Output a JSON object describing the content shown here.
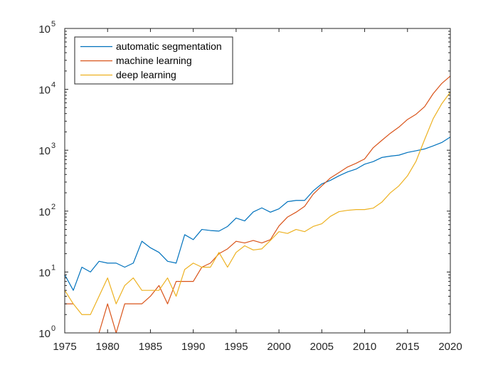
{
  "chart_data": {
    "type": "line",
    "title": "",
    "xlabel": "",
    "ylabel": "",
    "xlim": [
      1975,
      2020
    ],
    "ylim": [
      1,
      100000
    ],
    "yscale": "log",
    "grid": false,
    "legend_position": "top-left",
    "x_ticks": [
      1975,
      1980,
      1985,
      1990,
      1995,
      2000,
      2005,
      2010,
      2015,
      2020
    ],
    "y_ticks": [
      {
        "value": 1,
        "base": "10",
        "exp": "0"
      },
      {
        "value": 10,
        "base": "10",
        "exp": "1"
      },
      {
        "value": 100,
        "base": "10",
        "exp": "2"
      },
      {
        "value": 1000,
        "base": "10",
        "exp": "3"
      },
      {
        "value": 10000,
        "base": "10",
        "exp": "4"
      },
      {
        "value": 100000,
        "base": "10",
        "exp": "5"
      }
    ],
    "x": [
      1975,
      1976,
      1977,
      1978,
      1979,
      1980,
      1981,
      1982,
      1983,
      1984,
      1985,
      1986,
      1987,
      1988,
      1989,
      1990,
      1991,
      1992,
      1993,
      1994,
      1995,
      1996,
      1997,
      1998,
      1999,
      2000,
      2001,
      2002,
      2003,
      2004,
      2005,
      2006,
      2007,
      2008,
      2009,
      2010,
      2011,
      2012,
      2013,
      2014,
      2015,
      2016,
      2017,
      2018,
      2019,
      2020
    ],
    "series": [
      {
        "name": "automatic segmentation",
        "color": "#0072BD",
        "values": [
          9,
          5,
          12,
          10,
          15,
          14,
          14,
          12,
          14,
          32,
          25,
          21,
          15,
          14,
          41,
          34,
          50,
          48,
          47,
          56,
          77,
          69,
          97,
          113,
          96,
          109,
          143,
          150,
          150,
          215,
          280,
          320,
          380,
          440,
          490,
          590,
          650,
          760,
          800,
          830,
          920,
          980,
          1050,
          1180,
          1340,
          1650
        ]
      },
      {
        "name": "machine learning",
        "color": "#D95319",
        "values": [
          3,
          3,
          null,
          null,
          1,
          3,
          1,
          3,
          3,
          3,
          4,
          6,
          3,
          7,
          7,
          7,
          12,
          14,
          20,
          24,
          32,
          30,
          33,
          30,
          34,
          57,
          80,
          96,
          120,
          190,
          260,
          350,
          430,
          530,
          610,
          720,
          1100,
          1450,
          1900,
          2400,
          3200,
          3900,
          5200,
          8500,
          12500,
          16500
        ]
      },
      {
        "name": "deep learning",
        "color": "#EDB120",
        "values": [
          5,
          3,
          2,
          2,
          4,
          8,
          3,
          6,
          8,
          5,
          5,
          5,
          8,
          4,
          11,
          14,
          12,
          12,
          21,
          12,
          21,
          27,
          23,
          24,
          33,
          46,
          43,
          50,
          46,
          56,
          62,
          82,
          98,
          103,
          106,
          106,
          112,
          140,
          200,
          260,
          380,
          660,
          1500,
          3300,
          5800,
          9000
        ]
      }
    ]
  }
}
